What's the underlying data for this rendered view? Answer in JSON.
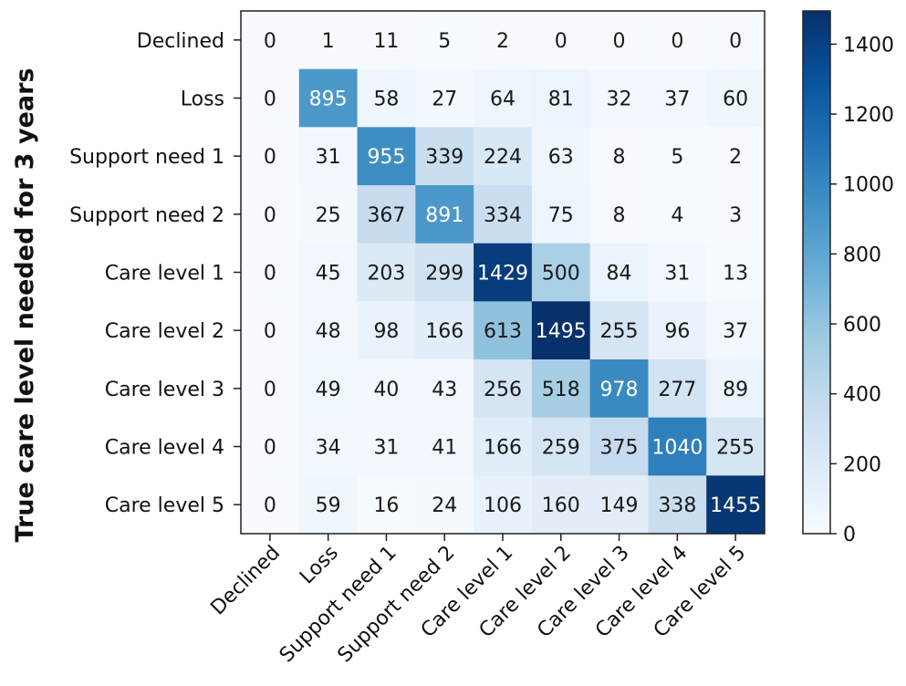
{
  "chart_data": {
    "type": "heatmap",
    "title": "",
    "ylabel": "True care level needed for 3 years",
    "xlabel": "",
    "row_labels": [
      "Declined",
      "Loss",
      "Support need 1",
      "Support need 2",
      "Care level 1",
      "Care level 2",
      "Care level 3",
      "Care level 4",
      "Care level 5"
    ],
    "col_labels": [
      "Declined",
      "Loss",
      "Support need 1",
      "Support need 2",
      "Care level 1",
      "Care level 2",
      "Care level 3",
      "Care level 4",
      "Care level 5"
    ],
    "values": [
      [
        0,
        1,
        11,
        5,
        2,
        0,
        0,
        0,
        0
      ],
      [
        0,
        895,
        58,
        27,
        64,
        81,
        32,
        37,
        60
      ],
      [
        0,
        31,
        955,
        339,
        224,
        63,
        8,
        5,
        2
      ],
      [
        0,
        25,
        367,
        891,
        334,
        75,
        8,
        4,
        3
      ],
      [
        0,
        45,
        203,
        299,
        1429,
        500,
        84,
        31,
        13
      ],
      [
        0,
        48,
        98,
        166,
        613,
        1495,
        255,
        96,
        37
      ],
      [
        0,
        49,
        40,
        43,
        256,
        518,
        978,
        277,
        89
      ],
      [
        0,
        34,
        31,
        41,
        166,
        259,
        375,
        1040,
        255
      ],
      [
        0,
        59,
        16,
        24,
        106,
        160,
        149,
        338,
        1455
      ]
    ],
    "colorbar": {
      "min": 0,
      "max": 1495,
      "ticks": [
        0,
        200,
        400,
        600,
        800,
        1000,
        1200,
        1400
      ],
      "colormap": "Blues",
      "colors": [
        "#f7fbff",
        "#deebf7",
        "#c6dbef",
        "#9ecae1",
        "#6baed6",
        "#4292c6",
        "#2171b5",
        "#08519c",
        "#08306b"
      ]
    },
    "grid": false
  }
}
